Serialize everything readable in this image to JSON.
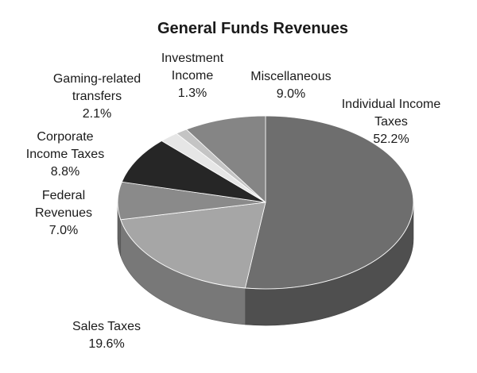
{
  "chart_data": {
    "type": "pie",
    "title": "General Funds Revenues",
    "slices": [
      {
        "label": [
          "Individual Income",
          "Taxes"
        ],
        "pct_label": "52.2%",
        "value": 52.2,
        "color": "#6e6e6e"
      },
      {
        "label": [
          "Sales Taxes"
        ],
        "pct_label": "19.6%",
        "value": 19.6,
        "color": "#a6a6a6"
      },
      {
        "label": [
          "Federal",
          "Revenues"
        ],
        "pct_label": "7.0%",
        "value": 7.0,
        "color": "#8a8a8a"
      },
      {
        "label": [
          "Corporate",
          "Income Taxes"
        ],
        "pct_label": "8.8%",
        "value": 8.8,
        "color": "#262626"
      },
      {
        "label": [
          "Gaming-related",
          "transfers"
        ],
        "pct_label": "2.1%",
        "value": 2.1,
        "color": "#e6e6e6"
      },
      {
        "label": [
          "Investment",
          "Income"
        ],
        "pct_label": "1.3%",
        "value": 1.3,
        "color": "#c4c4c4"
      },
      {
        "label": [
          "Miscellaneous"
        ],
        "pct_label": "9.0%",
        "value": 9.0,
        "color": "#858585"
      }
    ]
  }
}
